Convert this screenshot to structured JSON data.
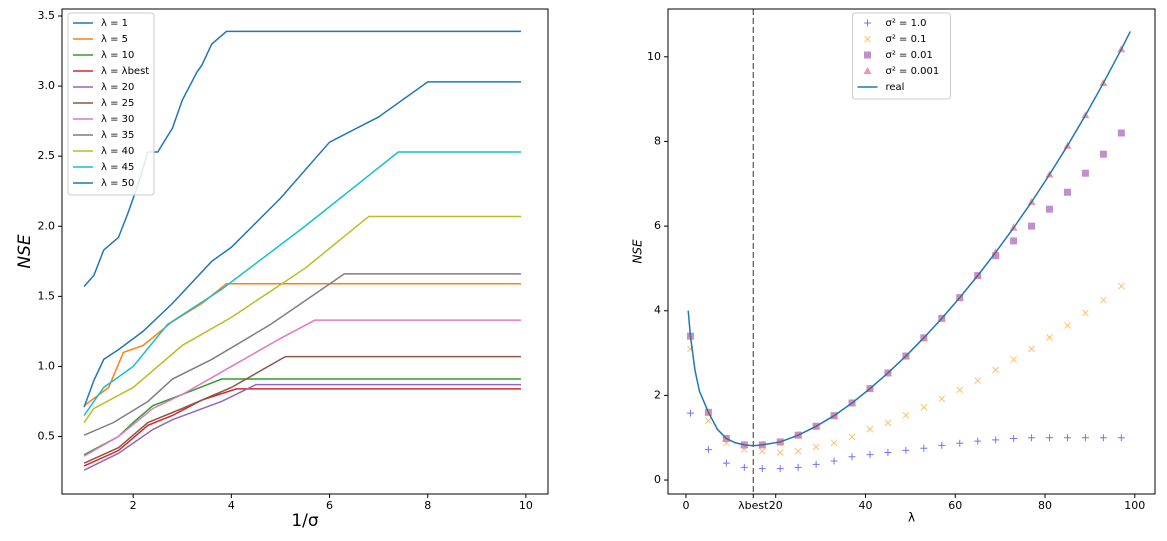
{
  "chart_data": [
    {
      "type": "line",
      "xlabel": "1/σ",
      "ylabel": "NSE",
      "xlim": [
        0.55,
        10.45
      ],
      "ylim": [
        0.09,
        3.55
      ],
      "xticks": [
        2,
        4,
        6,
        8,
        10
      ],
      "yticks": [
        0.5,
        {
          "value": 1,
          "label": "1.0"
        },
        1.5,
        {
          "value": 2,
          "label": "2.0"
        },
        2.5,
        {
          "value": 3,
          "label": "3.0"
        },
        3.5
      ],
      "legend": "upper left",
      "series": [
        {
          "name": "λ = 1",
          "color": "#1f77b4",
          "x": [
            1,
            1.2,
            1.4,
            1.7,
            1.9,
            2.1,
            2.3,
            2.5,
            2.8,
            3.0,
            3.3,
            3.4,
            3.6,
            3.9,
            9.9
          ],
          "values": [
            1.57,
            1.65,
            1.83,
            1.92,
            2.1,
            2.3,
            2.53,
            2.53,
            2.7,
            2.9,
            3.1,
            3.15,
            3.3,
            3.39,
            3.39
          ]
        },
        {
          "name": "λ = 5",
          "color": "#ff7f0e",
          "x": [
            1,
            1.5,
            1.8,
            2.2,
            2.8,
            3.4,
            3.9,
            9.9
          ],
          "values": [
            0.72,
            0.85,
            1.1,
            1.15,
            1.32,
            1.45,
            1.59,
            1.59
          ]
        },
        {
          "name": "λ = 10",
          "color": "#2ca02c",
          "x": [
            1,
            1.7,
            2.0,
            2.4,
            3.0,
            3.8,
            9.9
          ],
          "values": [
            0.37,
            0.5,
            0.6,
            0.72,
            0.8,
            0.91,
            0.91
          ]
        },
        {
          "name": "λ = λbest",
          "color": "#d62728",
          "x": [
            1,
            1.7,
            2.3,
            2.8,
            3.4,
            4.1,
            9.9
          ],
          "values": [
            0.29,
            0.4,
            0.58,
            0.65,
            0.76,
            0.84,
            0.84
          ]
        },
        {
          "name": "λ = 20",
          "color": "#9467bd",
          "x": [
            1,
            1.7,
            2.4,
            2.8,
            3.8,
            4.5,
            9.9
          ],
          "values": [
            0.26,
            0.38,
            0.55,
            0.62,
            0.75,
            0.87,
            0.87
          ]
        },
        {
          "name": "λ = 25",
          "color": "#8c564b",
          "x": [
            1,
            1.7,
            2.3,
            3.0,
            4.0,
            5.1,
            9.9
          ],
          "values": [
            0.31,
            0.42,
            0.6,
            0.7,
            0.85,
            1.07,
            1.07
          ]
        },
        {
          "name": "λ = 30",
          "color": "#e377c2",
          "x": [
            1,
            1.7,
            2.4,
            3.0,
            4.0,
            5.0,
            5.7,
            9.9
          ],
          "values": [
            0.36,
            0.5,
            0.7,
            0.8,
            1.0,
            1.2,
            1.33,
            1.33
          ]
        },
        {
          "name": "λ = 35",
          "color": "#7f7f7f",
          "x": [
            1,
            1.6,
            2.3,
            2.8,
            3.6,
            4.8,
            6.3,
            9.9
          ],
          "values": [
            0.51,
            0.6,
            0.75,
            0.91,
            1.05,
            1.3,
            1.66,
            1.66
          ]
        },
        {
          "name": "λ = 40",
          "color": "#bcbd22",
          "x": [
            1,
            1.2,
            2.0,
            3.0,
            4.0,
            5.5,
            6.8,
            9.9
          ],
          "values": [
            0.6,
            0.7,
            0.85,
            1.15,
            1.35,
            1.7,
            2.07,
            2.07
          ]
        },
        {
          "name": "λ = 45",
          "color": "#17becf",
          "x": [
            1,
            1.4,
            2.0,
            2.7,
            3.8,
            5.5,
            7.4,
            9.9
          ],
          "values": [
            0.65,
            0.85,
            1.0,
            1.3,
            1.55,
            2.0,
            2.53,
            2.53
          ]
        },
        {
          "name": "λ = 50",
          "color": "#1f77b4",
          "x": [
            1,
            1.2,
            1.4,
            1.7,
            2.2,
            2.8,
            3.6,
            4.0,
            5.0,
            6.0,
            7.0,
            8.0,
            9.9
          ],
          "values": [
            0.71,
            0.9,
            1.05,
            1.12,
            1.25,
            1.45,
            1.75,
            1.85,
            2.2,
            2.6,
            2.78,
            3.03,
            3.03
          ]
        }
      ]
    },
    {
      "type": "scatter",
      "xlabel": "λ",
      "ylabel": "NSE",
      "xlim": [
        -4,
        104.5
      ],
      "ylim": [
        -0.33,
        11.13
      ],
      "xticks": [
        0,
        {
          "value": 15,
          "label": "λbest"
        },
        20,
        40,
        60,
        80,
        100
      ],
      "yticks": [
        0,
        2,
        4,
        6,
        8,
        10
      ],
      "vline": 15,
      "legend": "upper center",
      "x": [
        1,
        5,
        9,
        13,
        17,
        21,
        25,
        29,
        33,
        37,
        41,
        45,
        49,
        53,
        57,
        61,
        65,
        69,
        73,
        77,
        81,
        85,
        89,
        93,
        97
      ],
      "series": [
        {
          "name": "σ² = 1.0",
          "color": "#7474f4",
          "marker": "plus",
          "values": [
            1.58,
            0.72,
            0.4,
            0.3,
            0.27,
            0.27,
            0.3,
            0.37,
            0.45,
            0.55,
            0.6,
            0.65,
            0.7,
            0.75,
            0.82,
            0.87,
            0.92,
            0.95,
            0.98,
            1.0,
            1.0,
            1.0,
            1.0,
            1.0,
            1.0
          ]
        },
        {
          "name": "σ² = 0.1",
          "color": "#ffbf6e",
          "marker": "x",
          "values": [
            3.1,
            1.4,
            0.88,
            0.72,
            0.68,
            0.65,
            0.68,
            0.78,
            0.88,
            1.02,
            1.2,
            1.35,
            1.53,
            1.72,
            1.92,
            2.13,
            2.35,
            2.6,
            2.85,
            3.1,
            3.37,
            3.65,
            3.95,
            4.25,
            4.58
          ]
        },
        {
          "name": "σ² = 0.01",
          "color": "#b57bc6",
          "marker": "square",
          "values": [
            3.4,
            1.6,
            0.98,
            0.83,
            0.83,
            0.9,
            1.06,
            1.27,
            1.52,
            1.82,
            2.16,
            2.53,
            2.93,
            3.36,
            3.82,
            4.31,
            4.83,
            5.3,
            5.65,
            6.0,
            6.4,
            6.8,
            7.25,
            7.7,
            8.2
          ]
        },
        {
          "name": "σ² = 0.001",
          "color": "#f7858a",
          "marker": "triangle",
          "values": [
            3.4,
            1.6,
            0.98,
            0.83,
            0.83,
            0.9,
            1.06,
            1.27,
            1.52,
            1.82,
            2.16,
            2.53,
            2.93,
            3.36,
            3.82,
            4.31,
            4.83,
            5.38,
            5.96,
            6.57,
            7.22,
            7.9,
            8.62,
            9.38,
            10.18
          ]
        },
        {
          "name": "real",
          "color": "#1f77b4",
          "style": "line",
          "x": [
            0.5,
            1,
            2,
            3,
            5,
            7,
            9,
            11,
            13,
            15,
            17,
            21,
            25,
            29,
            33,
            37,
            41,
            45,
            49,
            53,
            57,
            61,
            65,
            69,
            73,
            77,
            81,
            85,
            89,
            93,
            97,
            99
          ],
          "values": [
            4.0,
            3.4,
            2.6,
            2.1,
            1.6,
            1.2,
            0.98,
            0.88,
            0.83,
            0.81,
            0.83,
            0.9,
            1.06,
            1.27,
            1.52,
            1.82,
            2.16,
            2.53,
            2.93,
            3.36,
            3.82,
            4.31,
            4.83,
            5.38,
            5.96,
            6.57,
            7.22,
            7.9,
            8.62,
            9.38,
            10.18,
            10.6
          ]
        }
      ]
    }
  ]
}
